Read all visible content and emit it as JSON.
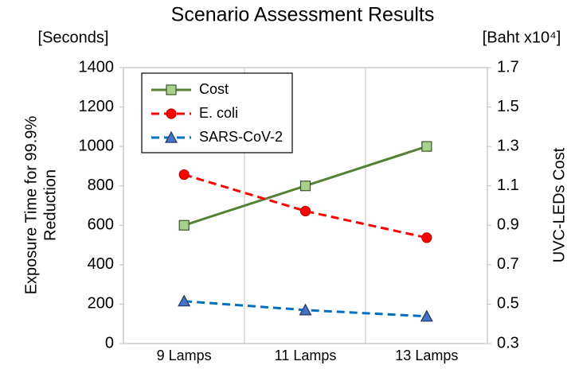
{
  "chart_data": {
    "type": "line",
    "title": "Scenario Assessment Results",
    "y_unit": "[Seconds]",
    "y2_unit": "[Baht x10⁴]",
    "ylabel": [
      "Exposure  Time for 99.9%",
      "Reduction"
    ],
    "y2label": "UVC-LEDs Cost",
    "categories": [
      "9 Lamps",
      "11 Lamps",
      "13 Lamps"
    ],
    "series": [
      {
        "name": "Cost",
        "color": "#548235",
        "marker": "square",
        "dashed": false,
        "axis": "y2",
        "values": [
          0.9,
          1.1,
          1.3
        ]
      },
      {
        "name": "E. coli",
        "color": "#ff0000",
        "marker": "circle",
        "dashed": true,
        "values": [
          857,
          672,
          537
        ]
      },
      {
        "name": "SARS-CoV-2",
        "color": "#0070c0",
        "marker": "triangle",
        "dashed": true,
        "values": [
          215,
          170,
          138
        ]
      }
    ],
    "ylim": [
      0,
      1400
    ],
    "yticks": [
      0,
      200,
      400,
      600,
      800,
      1000,
      1200,
      1400
    ],
    "y2lim": [
      0.3,
      1.7
    ],
    "y2ticks": [
      0.3,
      0.5,
      0.7,
      0.9,
      1.1,
      1.3,
      1.5,
      1.7
    ],
    "legend": "upper left"
  }
}
